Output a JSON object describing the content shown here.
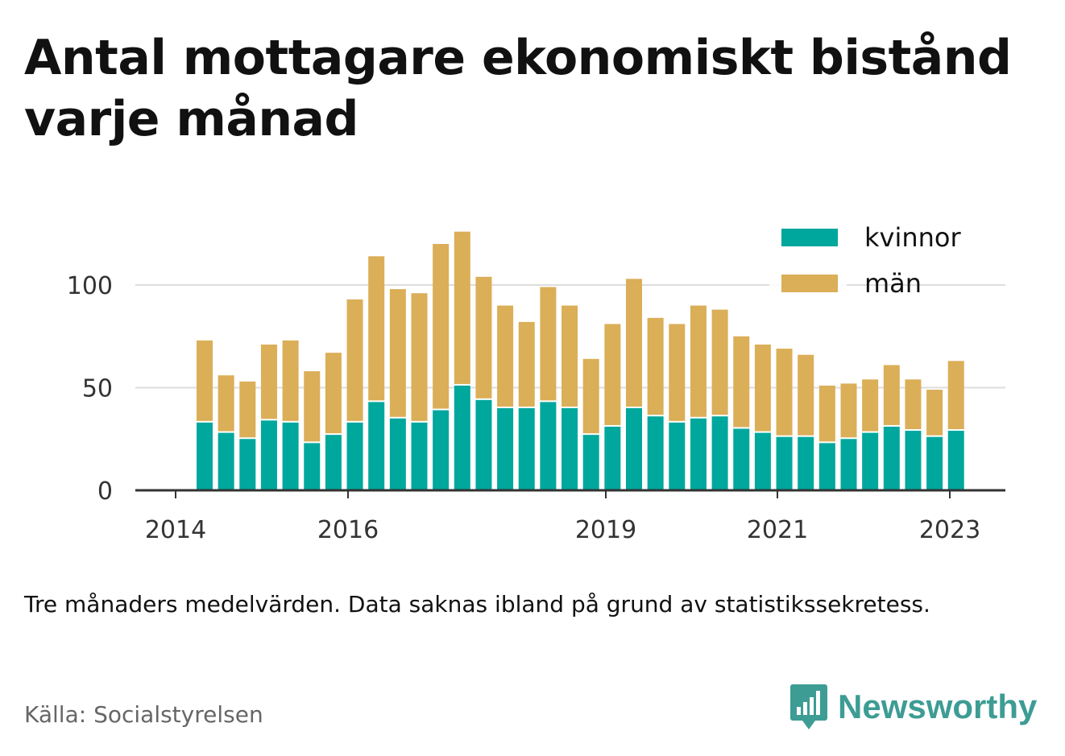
{
  "title": "Antal mottagare ekonomiskt bistånd varje månad",
  "note": "Tre månaders medelvärden. Data saknas ibland på grund av statistikssekretess.",
  "source": "Källa: Socialstyrelsen",
  "logo": {
    "text": "Newsworthy",
    "icon": "bar-chart-speech-bubble-icon"
  },
  "colors": {
    "kvinnor": "#00a79d",
    "man": "#dbae58",
    "grid": "#dddddd",
    "axis": "#333333",
    "logo": "#3d9c94"
  },
  "chart_data": {
    "type": "bar",
    "stacked": true,
    "x_ticks": [
      "2014",
      "2016",
      "2019",
      "2021",
      "2023"
    ],
    "y_ticks": [
      "0",
      "50",
      "100"
    ],
    "ylim": [
      0,
      130
    ],
    "grid": true,
    "legend_position": "top-right",
    "series": [
      {
        "name": "kvinnor",
        "values": [
          33,
          28,
          25,
          34,
          33,
          23,
          27,
          33,
          43,
          35,
          33,
          39,
          51,
          44,
          40,
          40,
          43,
          40,
          27,
          31,
          40,
          36,
          33,
          35,
          36,
          30,
          28,
          26,
          26,
          23,
          25,
          28,
          31,
          29,
          26,
          29
        ]
      },
      {
        "name": "män",
        "values": [
          40,
          28,
          28,
          37,
          40,
          35,
          40,
          60,
          71,
          63,
          63,
          81,
          75,
          60,
          50,
          42,
          56,
          50,
          37,
          50,
          63,
          48,
          48,
          55,
          52,
          45,
          43,
          43,
          40,
          28,
          27,
          26,
          30,
          25,
          23,
          34
        ]
      }
    ]
  }
}
